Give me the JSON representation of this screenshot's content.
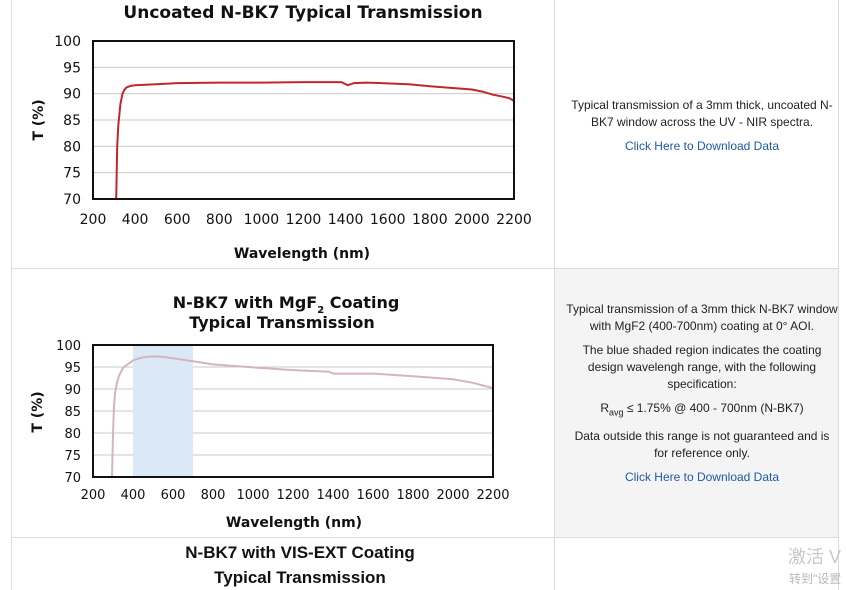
{
  "rows": [
    {
      "description": [
        "Typical transmission of a 3mm thick, uncoated N-BK7 window across the UV - NIR spectra."
      ],
      "link": "Click Here to Download Data"
    },
    {
      "description": [
        "Typical transmission of a 3mm thick N-BK7 window with MgF2 (400-700nm) coating at 0° AOI.",
        "The blue shaded region indicates the coating design wavelengh range, with the following specification:",
        "Data outside this range is not guaranteed and is for reference only."
      ],
      "spec": {
        "r": "R",
        "sub": "avg",
        "rest": " ≤ 1.75% @ 400 - 700nm (N-BK7)"
      },
      "link": "Click Here to Download Data"
    },
    {
      "title_line1": "N-BK7 with VIS-EXT Coating",
      "title_line2": "Typical Transmission"
    }
  ],
  "watermark": {
    "line1": "激活 V",
    "line2": "转到\"设置"
  },
  "colors": {
    "line1": "#c0272d",
    "line2": "#d4b5bd",
    "shade": "#dbe8f5",
    "link": "#1e5aa8"
  },
  "chart_data": [
    {
      "type": "line",
      "title": "Uncoated N-BK7 Typical Transmission",
      "xlabel": "Wavelength (nm)",
      "ylabel": "T (%)",
      "xlim": [
        200,
        2200
      ],
      "ylim": [
        70,
        100
      ],
      "xticks": [
        200,
        400,
        600,
        800,
        1000,
        1200,
        1400,
        1600,
        1800,
        2000,
        2200
      ],
      "yticks": [
        70,
        75,
        80,
        85,
        90,
        95,
        100
      ],
      "grid": true,
      "series": [
        {
          "name": "Uncoated N-BK7",
          "x": [
            310,
            315,
            320,
            330,
            340,
            350,
            360,
            380,
            400,
            500,
            600,
            800,
            1000,
            1200,
            1380,
            1410,
            1440,
            1500,
            1700,
            1800,
            1900,
            2000,
            2050,
            2100,
            2150,
            2180,
            2200
          ],
          "y": [
            70,
            80,
            84,
            88,
            90,
            90.8,
            91.2,
            91.5,
            91.6,
            91.8,
            92.0,
            92.1,
            92.1,
            92.2,
            92.2,
            91.6,
            92.0,
            92.1,
            91.8,
            91.4,
            91.1,
            90.8,
            90.4,
            89.8,
            89.4,
            89.1,
            88.6
          ]
        }
      ]
    },
    {
      "type": "line",
      "title_main": "N-BK7 with MgF",
      "title_sub": "2",
      "title_rest": " Coating",
      "title_line2": "Typical Transmission",
      "xlabel": "Wavelength (nm)",
      "ylabel": "T (%)",
      "xlim": [
        200,
        2200
      ],
      "ylim": [
        70,
        100
      ],
      "xticks": [
        200,
        400,
        600,
        800,
        1000,
        1200,
        1400,
        1600,
        1800,
        2000,
        2200
      ],
      "yticks": [
        70,
        75,
        80,
        85,
        90,
        95,
        100
      ],
      "grid": true,
      "shaded_region": [
        400,
        700
      ],
      "series": [
        {
          "name": "N-BK7 with MgF2",
          "x": [
            295,
            300,
            305,
            310,
            320,
            330,
            350,
            400,
            450,
            500,
            550,
            600,
            700,
            800,
            1000,
            1200,
            1380,
            1400,
            1600,
            1800,
            2000,
            2100,
            2150,
            2200
          ],
          "y": [
            70,
            80,
            86,
            89,
            91.5,
            93,
            94.8,
            96.5,
            97.2,
            97.4,
            97.3,
            97,
            96.3,
            95.6,
            94.9,
            94.3,
            93.9,
            93.5,
            93.5,
            92.9,
            92.2,
            91.4,
            90.8,
            90.2
          ]
        }
      ]
    }
  ]
}
